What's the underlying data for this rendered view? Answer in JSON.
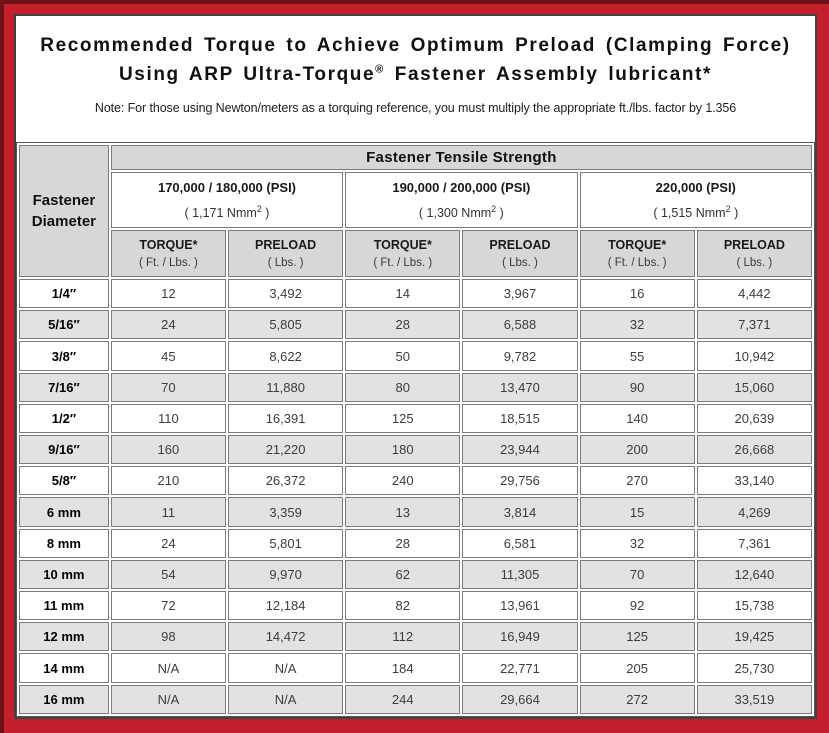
{
  "title": {
    "line1": "Recommended Torque to Achieve Optimum Preload (Clamping Force)",
    "line2_prefix": "Using ARP Ultra-Torque",
    "line2_sup": "®",
    "line2_suffix": " Fastener Assembly lubricant*"
  },
  "note": "Note: For those using Newton/meters as a torquing reference, you must multiply the appropriate ft./lbs. factor by 1.356",
  "table": {
    "corner_header": {
      "line1": "Fastener",
      "line2": "Diameter"
    },
    "tensile_header": "Fastener Tensile Strength",
    "strength_groups": [
      {
        "psi": "170,000 / 180,000 (PSI)",
        "nmm_prefix": "( 1,171 Nmm",
        "nmm_sup": "2",
        "nmm_suffix": " )"
      },
      {
        "psi": "190,000 / 200,000 (PSI)",
        "nmm_prefix": "( 1,300 Nmm",
        "nmm_sup": "2",
        "nmm_suffix": " )"
      },
      {
        "psi": "220,000 (PSI)",
        "nmm_prefix": "( 1,515 Nmm",
        "nmm_sup": "2",
        "nmm_suffix": " )"
      }
    ],
    "col_headers": {
      "torque": "TORQUE*",
      "torque_sub": "( Ft. / Lbs. )",
      "preload": "PRELOAD",
      "preload_sub": "( Lbs. )"
    },
    "rows": [
      {
        "dia": "1/4″",
        "values": [
          "12",
          "3,492",
          "14",
          "3,967",
          "16",
          "4,442"
        ]
      },
      {
        "dia": "5/16″",
        "values": [
          "24",
          "5,805",
          "28",
          "6,588",
          "32",
          "7,371"
        ]
      },
      {
        "dia": "3/8″",
        "values": [
          "45",
          "8,622",
          "50",
          "9,782",
          "55",
          "10,942"
        ]
      },
      {
        "dia": "7/16″",
        "values": [
          "70",
          "11,880",
          "80",
          "13,470",
          "90",
          "15,060"
        ]
      },
      {
        "dia": "1/2″",
        "values": [
          "110",
          "16,391",
          "125",
          "18,515",
          "140",
          "20,639"
        ]
      },
      {
        "dia": "9/16″",
        "values": [
          "160",
          "21,220",
          "180",
          "23,944",
          "200",
          "26,668"
        ]
      },
      {
        "dia": "5/8″",
        "values": [
          "210",
          "26,372",
          "240",
          "29,756",
          "270",
          "33,140"
        ]
      },
      {
        "dia": "6 mm",
        "values": [
          "11",
          "3,359",
          "13",
          "3,814",
          "15",
          "4,269"
        ]
      },
      {
        "dia": "8 mm",
        "values": [
          "24",
          "5,801",
          "28",
          "6,581",
          "32",
          "7,361"
        ]
      },
      {
        "dia": "10 mm",
        "values": [
          "54",
          "9,970",
          "62",
          "11,305",
          "70",
          "12,640"
        ]
      },
      {
        "dia": "11 mm",
        "values": [
          "72",
          "12,184",
          "82",
          "13,961",
          "92",
          "15,738"
        ]
      },
      {
        "dia": "12 mm",
        "values": [
          "98",
          "14,472",
          "112",
          "16,949",
          "125",
          "19,425"
        ]
      },
      {
        "dia": "14 mm",
        "values": [
          "N/A",
          "N/A",
          "184",
          "22,771",
          "205",
          "25,730"
        ]
      },
      {
        "dia": "16 mm",
        "values": [
          "N/A",
          "N/A",
          "244",
          "29,664",
          "272",
          "33,519"
        ]
      }
    ]
  },
  "colors": {
    "page_red": "#c2202c",
    "edge_maroon": "#6d1317",
    "sheet_border": "#414141",
    "header_gray": "#d7d7d7",
    "row_gray": "#e2e2e2",
    "cell_border": "#7c7c7c",
    "value_gray": "#3d3d3d"
  }
}
